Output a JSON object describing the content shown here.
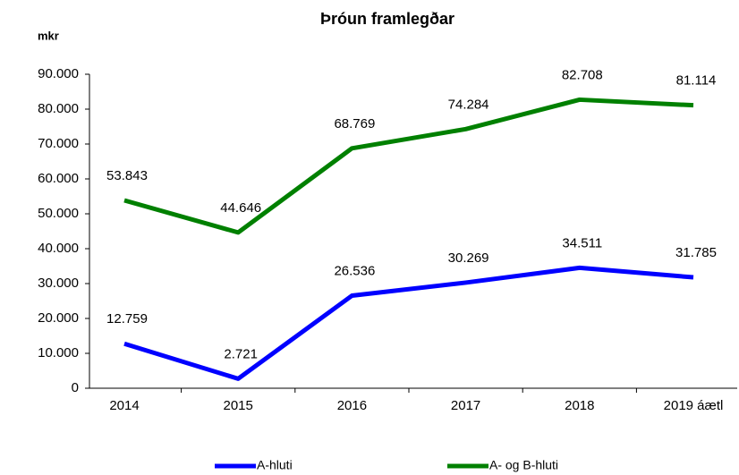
{
  "chart_data": {
    "type": "line",
    "title": "Þróun framlegðar",
    "y_label": "mkr",
    "categories": [
      "2014",
      "2015",
      "2016",
      "2017",
      "2018",
      "2019 áætl"
    ],
    "series": [
      {
        "name": "A-hluti",
        "color": "#0000ff",
        "values": [
          12759,
          2721,
          26536,
          30269,
          34511,
          31785
        ],
        "value_labels": [
          "12.759",
          "2.721",
          "26.536",
          "30.269",
          "34.511",
          "31.785"
        ]
      },
      {
        "name": "A- og B-hluti",
        "color": "#008000",
        "values": [
          53843,
          44646,
          68769,
          74284,
          82708,
          81114
        ],
        "value_labels": [
          "53.843",
          "44.646",
          "68.769",
          "74.284",
          "82.708",
          "81.114"
        ]
      }
    ],
    "ylim": [
      0,
      90000
    ],
    "yticks": [
      0,
      {
        "value": 10000,
        "label": "10.000"
      },
      {
        "value": 20000,
        "label": "20.000"
      },
      {
        "value": 30000,
        "label": "30.000"
      },
      {
        "value": 40000,
        "label": "40.000"
      },
      {
        "value": 50000,
        "label": "50.000"
      },
      {
        "value": 60000,
        "label": "60.000"
      },
      {
        "value": 70000,
        "label": "70.000"
      },
      {
        "value": 80000,
        "label": "80.000"
      },
      {
        "value": 90000,
        "label": "90.000"
      }
    ],
    "legend": "bottom"
  }
}
